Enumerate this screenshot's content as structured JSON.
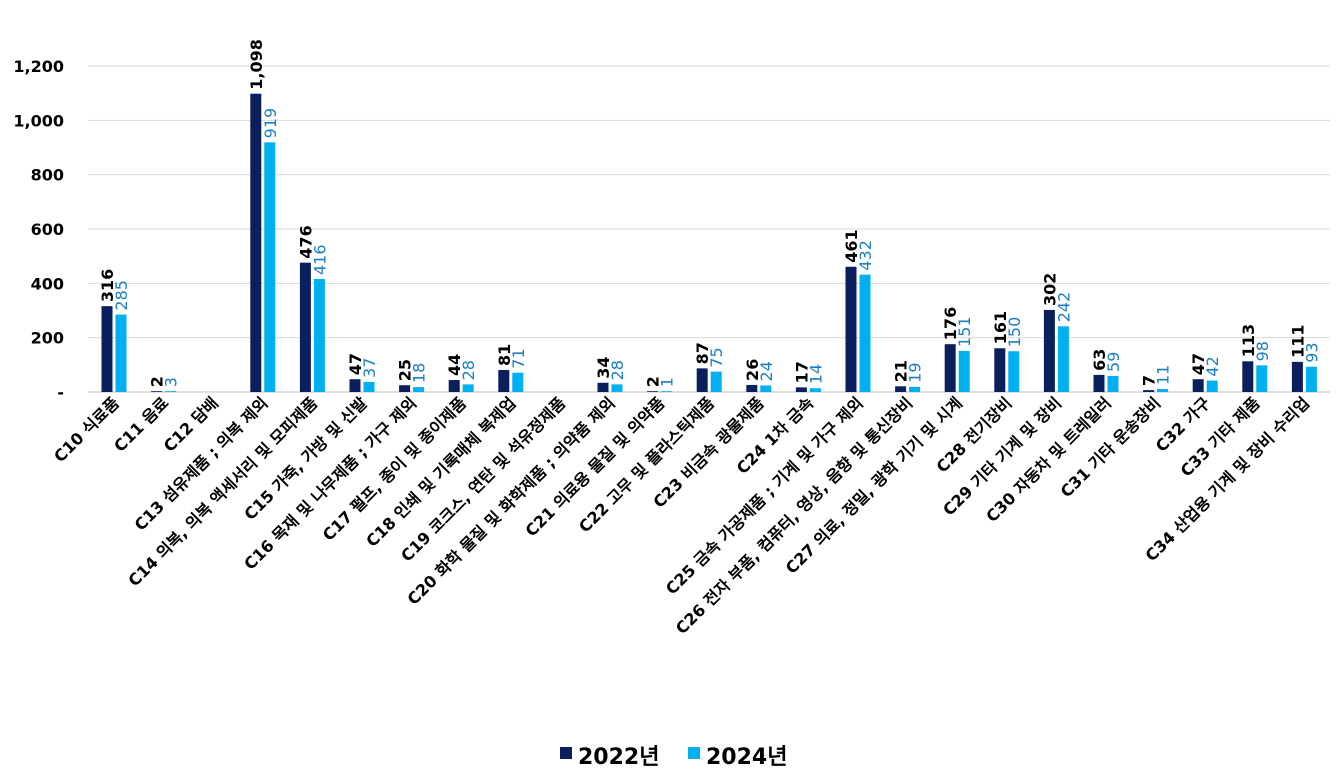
{
  "chart_data": {
    "type": "bar",
    "categories": [
      "C10 식료품",
      "C11 음료",
      "C12 담배",
      "C13 섬유제품 ; 의복 제외",
      "C14 의복, 의복 액세서리 및 모피제품",
      "C15 가죽, 가방 및 신발",
      "C16 목재 및 나무제품 ; 가구 제외",
      "C17 펄프, 종이 및 종이제품",
      "C18 인쇄 및 기록매체 복제업",
      "C19 코크스, 연탄 및 석유정제품",
      "C20 화학 물질 및 화학제품 ; 의약품 제외",
      "C21 의료용 물질 및 의약품",
      "C22 고무 및 플라스틱제품",
      "C23 비금속 광물제품",
      "C24 1차 금속",
      "C25 금속 가공제품 ; 기계 및 가구 제외",
      "C26 전자 부품, 컴퓨터, 영상, 음향 및 통신장비",
      "C27 의료, 정밀, 광학 기기 및 시계",
      "C28 전기장비",
      "C29 기타 기계 및 장비",
      "C30 자동차 및 트레일러",
      "C31 기타 운송장비",
      "C32 가구",
      "C33 기타 제품",
      "C34 산업용 기계 및 장비 수리업"
    ],
    "series": [
      {
        "name": "2022년",
        "color": "#0a1f5c",
        "values": [
          316,
          2,
          null,
          1098,
          476,
          47,
          25,
          44,
          81,
          null,
          34,
          2,
          87,
          26,
          17,
          461,
          21,
          176,
          161,
          302,
          63,
          7,
          47,
          113,
          111
        ],
        "labels": [
          "316",
          "2",
          "",
          "1,098",
          "476",
          "47",
          "25",
          "44",
          "81",
          "",
          "34",
          "2",
          "87",
          "26",
          "17",
          "461",
          "21",
          "176",
          "161",
          "302",
          "63",
          "7",
          "47",
          "113",
          "111"
        ]
      },
      {
        "name": "2024년",
        "color": "#00b0f0",
        "values": [
          285,
          3,
          null,
          919,
          416,
          37,
          18,
          28,
          71,
          null,
          28,
          1,
          75,
          24,
          14,
          432,
          19,
          151,
          150,
          242,
          59,
          11,
          42,
          98,
          93
        ],
        "labels": [
          "285",
          "3",
          "",
          "919",
          "416",
          "37",
          "18",
          "28",
          "71",
          "",
          "28",
          "1",
          "75",
          "24",
          "14",
          "432",
          "19",
          "151",
          "150",
          "242",
          "59",
          "11",
          "42",
          "98",
          "93"
        ]
      }
    ],
    "yticks": [
      "-",
      "200",
      "400",
      "600",
      "800",
      "1,000",
      "1,200"
    ],
    "ylim": [
      0,
      1200
    ],
    "grid": true,
    "legend": "bottom"
  }
}
